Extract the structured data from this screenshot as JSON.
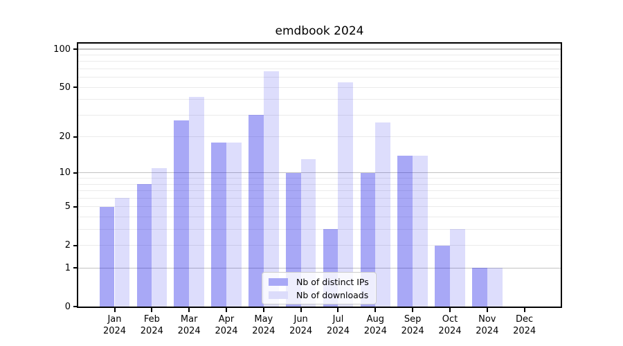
{
  "title": "emdbook 2024",
  "chart_data": {
    "type": "bar",
    "title": "emdbook 2024",
    "categories": [
      "Jan 2024",
      "Feb 2024",
      "Mar 2024",
      "Apr 2024",
      "May 2024",
      "Jun 2024",
      "Jul 2024",
      "Aug 2024",
      "Sep 2024",
      "Oct 2024",
      "Nov 2024",
      "Dec 2024"
    ],
    "x_tick_line1": [
      "Jan",
      "Feb",
      "Mar",
      "Apr",
      "May",
      "Jun",
      "Jul",
      "Aug",
      "Sep",
      "Oct",
      "Nov",
      "Dec"
    ],
    "x_tick_line2": "2024",
    "series": [
      {
        "name": "Nb of distinct IPs",
        "color": "rgba(0,0,230,0.34)",
        "legend_color": "#a8a8f6",
        "values": [
          5,
          8,
          27,
          18,
          30,
          10,
          3,
          10,
          14,
          2,
          1,
          0
        ]
      },
      {
        "name": "Nb of downloads",
        "color": "rgba(0,0,230,0.135)",
        "legend_color": "#dcdcfb",
        "values": [
          6,
          11,
          42,
          18,
          67,
          13,
          55,
          26,
          14,
          3,
          1,
          0
        ]
      }
    ],
    "yscale": "log1p",
    "ylim": [
      0,
      110
    ],
    "y_tick_values": [
      0,
      1,
      2,
      5,
      10,
      20,
      50,
      100
    ],
    "y_major_gridlines": [
      1,
      10,
      100
    ],
    "y_minor_gridlines": [
      2,
      3,
      4,
      5,
      6,
      7,
      8,
      9,
      20,
      30,
      40,
      50,
      60,
      70,
      80,
      90
    ],
    "grid": true,
    "legend_position": "lower center",
    "colors": {
      "axis_spine": "#000000",
      "major_gridline": "#c2c2c2",
      "minor_gridline": "#ebebeb",
      "text": "#000000"
    }
  }
}
